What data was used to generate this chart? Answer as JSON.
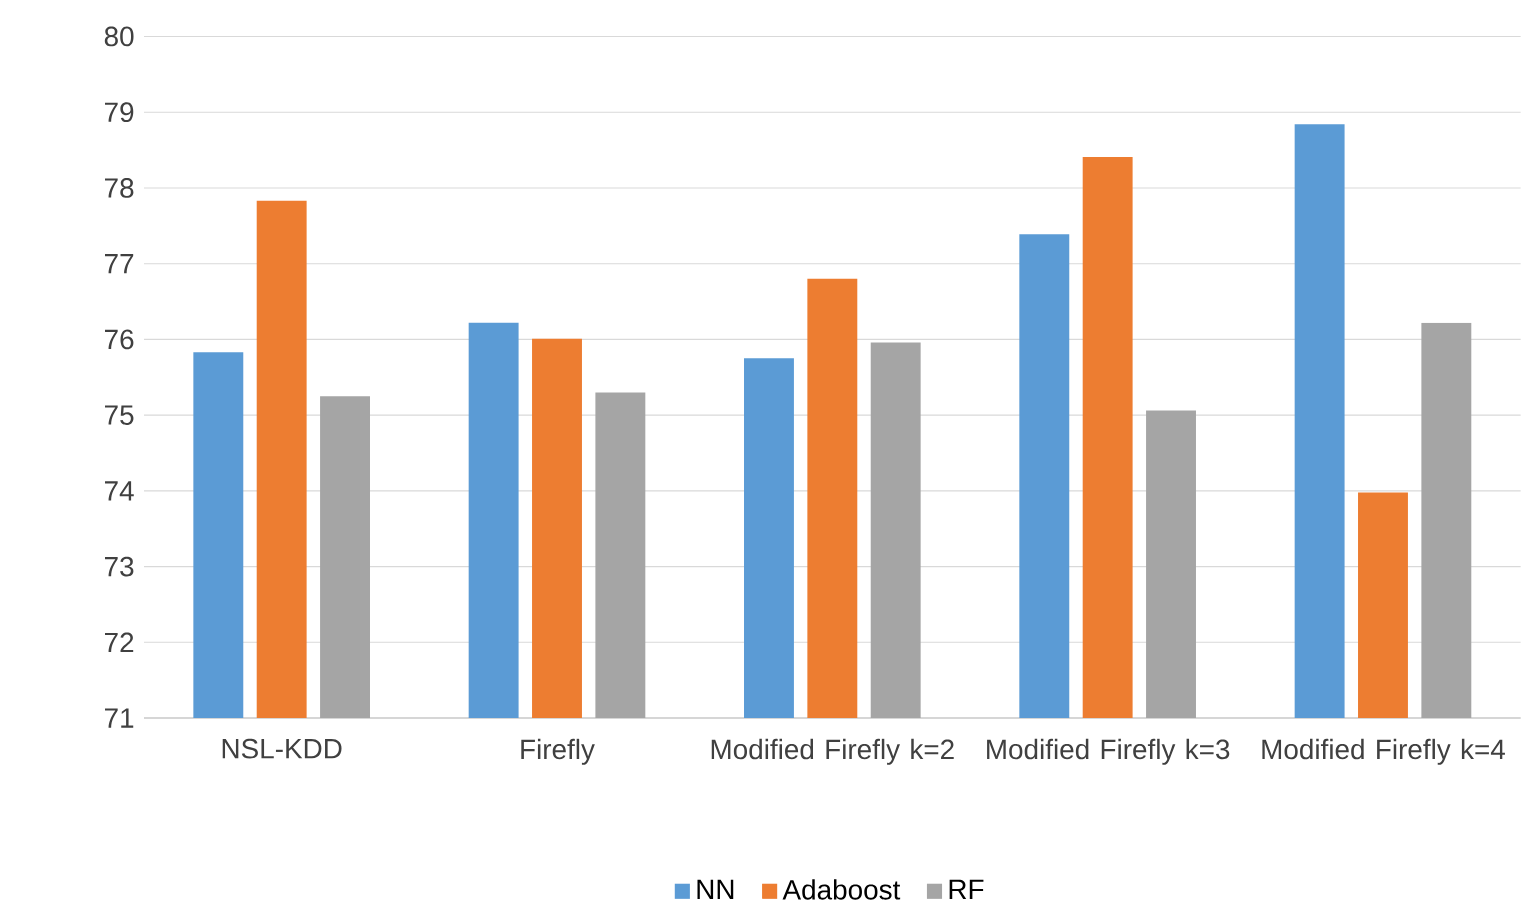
{
  "chart_data": {
    "type": "bar",
    "categories": [
      "NSL-KDD",
      "Firefly",
      "Modified Firefly k=2",
      "Modified Firefly k=3",
      "Modified Firefly k=4"
    ],
    "series": [
      {
        "name": "NN",
        "color": "#5b9bd5",
        "values": [
          75.83,
          76.22,
          75.75,
          77.39,
          78.84
        ]
      },
      {
        "name": "Adaboost",
        "color": "#ed7d31",
        "values": [
          77.83,
          76.01,
          76.8,
          78.41,
          73.98
        ]
      },
      {
        "name": "RF",
        "color": "#a5a5a5",
        "values": [
          75.25,
          75.3,
          75.96,
          75.06,
          76.22
        ]
      }
    ],
    "ylim": [
      71,
      80
    ],
    "yticks": [
      71,
      72,
      73,
      74,
      75,
      76,
      77,
      78,
      79,
      80
    ],
    "grid": "y",
    "legend": "bottom"
  }
}
